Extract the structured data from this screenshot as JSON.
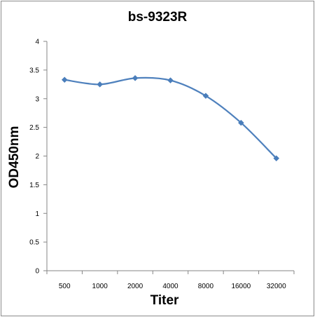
{
  "chart_data": {
    "type": "line",
    "title": "bs-9323R",
    "xlabel": "Titer",
    "ylabel": "OD450nm",
    "categories": [
      "500",
      "1000",
      "2000",
      "4000",
      "8000",
      "16000",
      "32000"
    ],
    "series": [
      {
        "values": [
          3.33,
          3.25,
          3.36,
          3.32,
          3.05,
          2.58,
          1.96
        ]
      }
    ],
    "ylim": [
      0,
      4
    ],
    "yticks": [
      0,
      0.5,
      1,
      1.5,
      2,
      2.5,
      3,
      3.5,
      4
    ],
    "ytick_labels": [
      "0",
      "0.5",
      "1",
      "1.5",
      "2",
      "2.5",
      "3",
      "3.5",
      "4"
    ],
    "grid": false,
    "legend": "none",
    "colors": {
      "line": "#4f81bd",
      "marker": "#4a7ebb",
      "axis": "#868686"
    }
  }
}
